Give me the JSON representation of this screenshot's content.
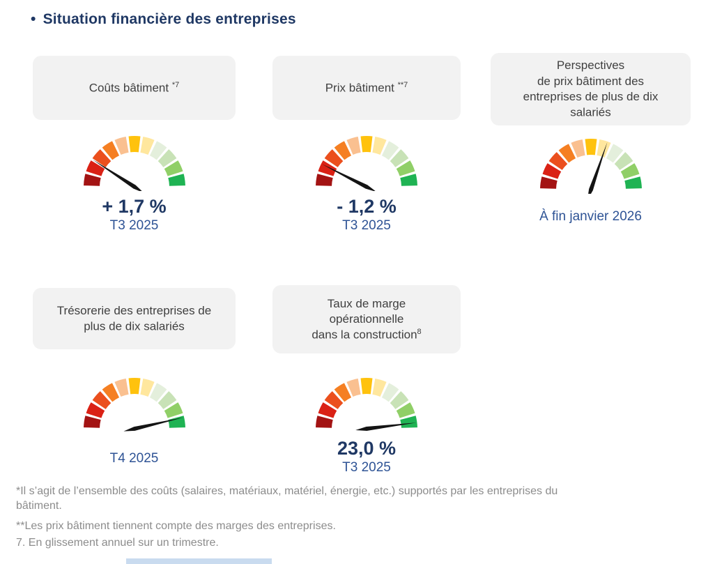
{
  "page": {
    "bullet": "•",
    "title": "Situation financière des entreprises"
  },
  "colors": {
    "title_navy": "#1F3864",
    "period_blue": "#2E5395",
    "card_background": "#F2F2F2",
    "footnote_gray": "#8C8C8C",
    "needle_black": "#141414"
  },
  "gauge_segments": [
    "#A31313",
    "#DA2115",
    "#EB4F1D",
    "#F57F22",
    "#FAC090",
    "#FFC20D",
    "#FFE79E",
    "#E4EFDC",
    "#C8E2B6",
    "#90CF67",
    "#1FB353"
  ],
  "panels": [
    {
      "title": "Coûts bâtiment ",
      "title_sup": "*7",
      "needle_angle_deg": 147,
      "value": "+ 1,7 %",
      "period": "T3 2025"
    },
    {
      "title": "Prix bâtiment ",
      "title_sup": "**7",
      "needle_angle_deg": 153,
      "value": "- 1,2 %",
      "period": "T3 2025"
    },
    {
      "title": "Perspectives\nde prix bâtiment des\nentreprises de plus de dix\nsalariés",
      "title_sup": "",
      "needle_angle_deg": 71,
      "value": "",
      "period": "À fin janvier 2026"
    },
    {
      "title": "Trésorerie des entreprises de\nplus de dix salariés",
      "title_sup": "",
      "needle_angle_deg": 13,
      "value": "",
      "period": "T4 2025"
    },
    {
      "title": "Taux de marge\nopérationnelle\ndans la construction",
      "title_sup": "8",
      "needle_angle_deg": 7,
      "value": "23,0 %",
      "period": "T3 2025"
    }
  ],
  "footnotes": [
    "*Il s’agit de l’ensemble des coûts (salaires, matériaux, matériel, énergie, etc.) supportés par les entreprises du\nbâtiment.",
    "**Les prix bâtiment tiennent compte des marges des entreprises.",
    "7. En glissement annuel sur un trimestre."
  ],
  "chart_data": [
    {
      "type": "gauge",
      "title": "Coûts bâtiment *7",
      "scale": "11-segment semicircular dial, dark red (left/bad) to green (right/good)",
      "needle_zone": "red zone, lower-left (segment 2-3 of 11)",
      "needle_angle_deg_from_right": 147,
      "value": "+ 1,7 %",
      "period": "T3 2025"
    },
    {
      "type": "gauge",
      "title": "Prix bâtiment **7",
      "scale": "11-segment semicircular dial, dark red (left/bad) to green (right/good)",
      "needle_zone": "red zone, lower-left (segment 2 of 11)",
      "needle_angle_deg_from_right": 153,
      "value": "- 1,2 %",
      "period": "T3 2025"
    },
    {
      "type": "gauge",
      "title": "Perspectives de prix bâtiment des entreprises de plus de dix salariés",
      "scale": "11-segment semicircular dial, dark red (left/bad) to green (right/good)",
      "needle_zone": "just right of vertical, pale-yellow zone (segment 7 of 11)",
      "needle_angle_deg_from_right": 71,
      "value": "",
      "period": "À fin janvier 2026"
    },
    {
      "type": "gauge",
      "title": "Trésorerie des entreprises de plus de dix salariés",
      "scale": "11-segment semicircular dial, dark red (left/bad) to green (right/good)",
      "needle_zone": "green zone, right (segment 10-11 of 11)",
      "needle_angle_deg_from_right": 13,
      "value": "",
      "period": "T4 2025"
    },
    {
      "type": "gauge",
      "title": "Taux de marge opérationnelle dans la construction⁸",
      "scale": "11-segment semicircular dial, dark red (left/bad) to green (right/good)",
      "needle_zone": "green zone, far right (segment 11 of 11)",
      "needle_angle_deg_from_right": 7,
      "value": "23,0 %",
      "period": "T3 2025"
    }
  ]
}
